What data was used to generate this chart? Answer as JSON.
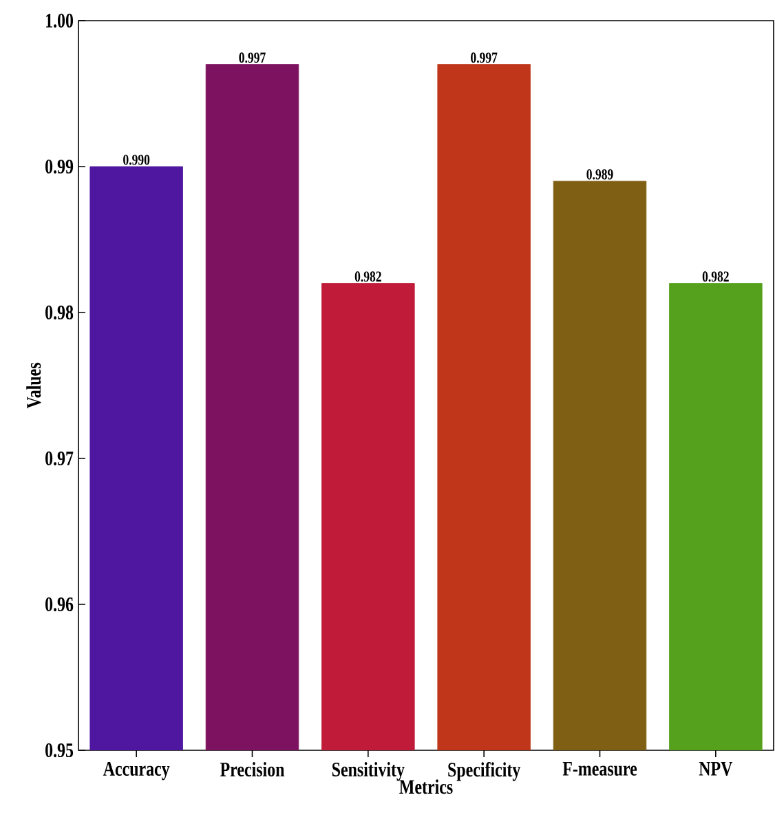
{
  "chart_data": {
    "type": "bar",
    "xlabel": "Metrics",
    "ylabel": "Values",
    "categories": [
      "Accuracy",
      "Precision",
      "Sensitivity",
      "Specificity",
      "F-measure",
      "NPV"
    ],
    "values": [
      0.99,
      0.997,
      0.982,
      0.997,
      0.989,
      0.982
    ],
    "colors": [
      "#4f17a0",
      "#7d1260",
      "#c01b38",
      "#c0361a",
      "#7f5f14",
      "#55a01c"
    ],
    "ylim": [
      0.95,
      1.0
    ],
    "yticks": [
      0.95,
      0.96,
      0.97,
      0.98,
      0.99,
      {
        "value": 1.0,
        "label": "1.00"
      }
    ],
    "value_labels": [
      "0.990",
      "0.997",
      "0.982",
      "0.997",
      "0.989",
      "0.982"
    ],
    "grid": false
  }
}
